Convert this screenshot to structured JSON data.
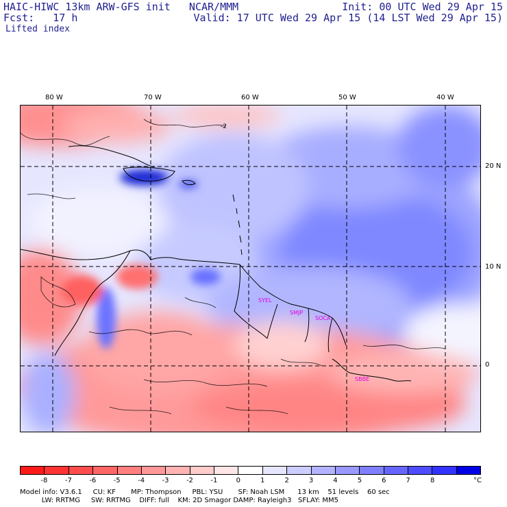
{
  "header": {
    "left_line1": "HAIC-HIWC 13km ARW-GFS init   NCAR/MMM",
    "left_line2": "Fcst:   17 h",
    "field": "Lifted index",
    "right_line1": "Init: 00 UTC Wed 29 Apr 15",
    "right_line2": "Valid: 17 UTC Wed 29 Apr 15 (14 LST Wed 29 Apr 15)"
  },
  "axes": {
    "lon_labels": [
      "80 W",
      "70 W",
      "60 W",
      "50 W",
      "40 W"
    ],
    "lat_labels": [
      "20 N",
      "10 N",
      "0"
    ]
  },
  "map_labels": {
    "guyana": "SYEL",
    "suriname": "SMJP",
    "fguiana": "SOCA",
    "brazil": "SBBE"
  },
  "contour_label": "-2",
  "colorbar": {
    "colors": [
      "#ff1a1a",
      "#ff3333",
      "#ff4d4d",
      "#ff6666",
      "#ff8080",
      "#ff9999",
      "#ffb3b3",
      "#ffcccc",
      "#ffe6e6",
      "#ffffff",
      "#e6e6ff",
      "#ccccff",
      "#b3b3ff",
      "#9999ff",
      "#8080ff",
      "#6666ff",
      "#4d4dff",
      "#3333ff",
      "#0000e6"
    ],
    "labels": [
      "-8",
      "-7",
      "-6",
      "-5",
      "-4",
      "-3",
      "-2",
      "-1",
      "0",
      "1",
      "2",
      "3",
      "4",
      "5",
      "6",
      "7",
      "8"
    ],
    "unit": "°C"
  },
  "footer": {
    "line1": "Model info: V3.6.1     CU: KF       MP: Thompson     PBL: YSU       SF: Noah LSM      13 km    51 levels    60 sec",
    "line2": "          LW: RRTMG     SW: RRTMG    DIFF: full    KM: 2D Smagor DAMP: Rayleigh3   SFLAY: MM5"
  }
}
